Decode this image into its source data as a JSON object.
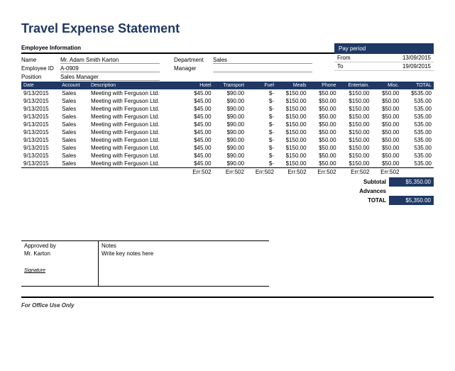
{
  "title": "Travel Expense Statement",
  "emp_header": "Employee Information",
  "emp": {
    "name_label": "Name",
    "name_value": "Mr. Adam Smith Karton",
    "dept_label": "Department",
    "dept_value": "Sales",
    "id_label": "Employee ID",
    "id_value": "A-0909",
    "mgr_label": "Manager",
    "mgr_value": "",
    "pos_label": "Position",
    "pos_value": "Sales Manager"
  },
  "pay": {
    "header": "Pay period",
    "from_label": "From",
    "from_value": "13/09/2015",
    "to_label": "To",
    "to_value": "19/09/2015"
  },
  "columns": [
    "Date",
    "Account",
    "Description",
    "Hotel",
    "Transport",
    "Fuel",
    "Meals",
    "Phone",
    "Entertain.",
    "Misc.",
    "TOTAL"
  ],
  "rows": [
    {
      "date": "9/13/2015",
      "account": "Sales",
      "desc": "Meeting with Ferguson Ltd.",
      "hotel": "$45.00",
      "transport": "$90.00",
      "fuel": "$-",
      "meals": "$150.00",
      "phone": "$50.00",
      "ent": "$150.00",
      "misc": "$50.00",
      "total": "$535.00"
    },
    {
      "date": "9/13/2015",
      "account": "Sales",
      "desc": "Meeting with Ferguson Ltd.",
      "hotel": "$45.00",
      "transport": "$90.00",
      "fuel": "$-",
      "meals": "$150.00",
      "phone": "$50.00",
      "ent": "$150.00",
      "misc": "$50.00",
      "total": "535.00"
    },
    {
      "date": "9/13/2015",
      "account": "Sales",
      "desc": "Meeting with Ferguson Ltd.",
      "hotel": "$45.00",
      "transport": "$90.00",
      "fuel": "$-",
      "meals": "$150.00",
      "phone": "$50.00",
      "ent": "$150.00",
      "misc": "$50.00",
      "total": "535.00"
    },
    {
      "date": "9/13/2015",
      "account": "Sales",
      "desc": "Meeting with Ferguson Ltd.",
      "hotel": "$45.00",
      "transport": "$90.00",
      "fuel": "$-",
      "meals": "$150.00",
      "phone": "$50.00",
      "ent": "$150.00",
      "misc": "$50.00",
      "total": "535.00"
    },
    {
      "date": "9/13/2015",
      "account": "Sales",
      "desc": "Meeting with Ferguson Ltd.",
      "hotel": "$45.00",
      "transport": "$90.00",
      "fuel": "$-",
      "meals": "$150.00",
      "phone": "$50.00",
      "ent": "$150.00",
      "misc": "$50.00",
      "total": "535.00"
    },
    {
      "date": "9/13/2015",
      "account": "Sales",
      "desc": "Meeting with Ferguson Ltd.",
      "hotel": "$45.00",
      "transport": "$90.00",
      "fuel": "$-",
      "meals": "$150.00",
      "phone": "$50.00",
      "ent": "$150.00",
      "misc": "$50.00",
      "total": "535.00"
    },
    {
      "date": "9/13/2015",
      "account": "Sales",
      "desc": "Meeting with Ferguson Ltd.",
      "hotel": "$45.00",
      "transport": "$90.00",
      "fuel": "$-",
      "meals": "$150.00",
      "phone": "$50.00",
      "ent": "$150.00",
      "misc": "$50.00",
      "total": "535.00"
    },
    {
      "date": "9/13/2015",
      "account": "Sales",
      "desc": "Meeting with Ferguson Ltd.",
      "hotel": "$45.00",
      "transport": "$90.00",
      "fuel": "$-",
      "meals": "$150.00",
      "phone": "$50.00",
      "ent": "$150.00",
      "misc": "$50.00",
      "total": "535.00"
    },
    {
      "date": "9/13/2015",
      "account": "Sales",
      "desc": "Meeting with Ferguson Ltd.",
      "hotel": "$45.00",
      "transport": "$90.00",
      "fuel": "$-",
      "meals": "$150.00",
      "phone": "$50.00",
      "ent": "$150.00",
      "misc": "$50.00",
      "total": "535.00"
    },
    {
      "date": "9/13/2015",
      "account": "Sales",
      "desc": "Meeting with Ferguson Ltd.",
      "hotel": "$45.00",
      "transport": "$90.00",
      "fuel": "$-",
      "meals": "$150.00",
      "phone": "$50.00",
      "ent": "$150.00",
      "misc": "$50.00",
      "total": "535.00"
    }
  ],
  "totals_row": {
    "hotel": "Err:502",
    "transport": "Err:502",
    "fuel": "Err:502",
    "meals": "Err:502",
    "phone": "Err:502",
    "ent": "Err:502",
    "misc": "Err:502"
  },
  "summary": {
    "subtotal_label": "Subtotal",
    "subtotal_value": "$5,350.00",
    "advances_label": "Advances",
    "advances_value": "",
    "total_label": "TOTAL",
    "total_value": "$5,350.00"
  },
  "approved": {
    "approved_label": "Approved by",
    "approved_value": "Mr. Karton",
    "notes_label": "Notes",
    "notes_value": "Write key notes here",
    "signature": "Signature"
  },
  "office": "For Office Use Only"
}
